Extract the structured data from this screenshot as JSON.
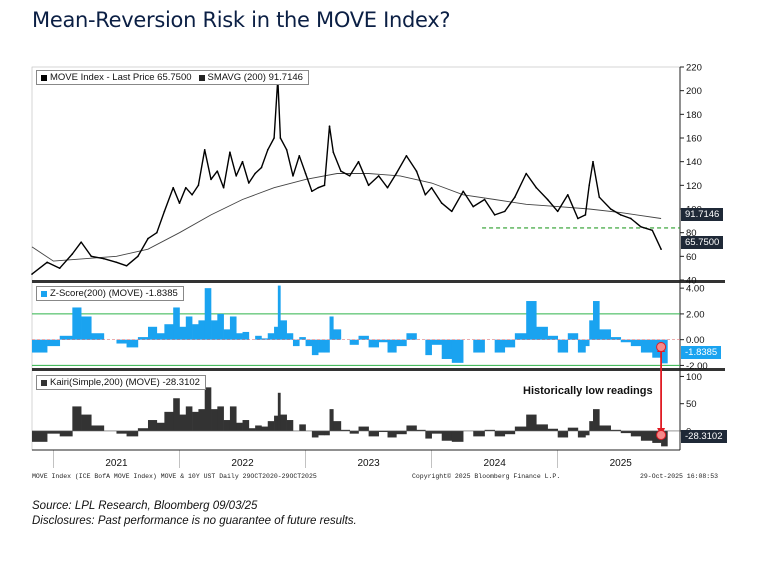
{
  "title": "Mean-Reversion Risk in the MOVE Index?",
  "source": "Source: LPL Research, Bloomberg 09/03/25",
  "disclosure": "Disclosures: Past performance is no guarantee of future results.",
  "footer_left": "MOVE Index (ICE BofA MOVE Index) MOVE & 10Y UST Daily 29OCT2020-29OCT2025",
  "footer_mid": "Copyright© 2025 Bloomberg Finance L.P.",
  "footer_right": "29-Oct-2025 16:08:53",
  "annotation": "Historically low readings",
  "colors": {
    "price": "#000000",
    "sma": "#444444",
    "zscore": "#1aa3f0",
    "kairi": "#333333",
    "green": "#2fb34a",
    "support": "#2a9d2a",
    "arrow": "#e01c24",
    "tag_dark": "#1f2937",
    "tag_blue": "#1aa3f0"
  },
  "chart_data": [
    {
      "type": "line",
      "panel": "price",
      "legend": [
        "MOVE Index - Last Price 65.7500",
        "SMAVG (200) 91.7146"
      ],
      "ylim": [
        40,
        220
      ],
      "yticks": [
        "220",
        "200",
        "180",
        "160",
        "140",
        "120",
        "100",
        "80",
        "60",
        "40"
      ],
      "last_price_label": "65.7500",
      "sma_label": "91.7146",
      "support_level": 84,
      "series": [
        {
          "name": "MOVE Index - Last Price",
          "x": [
            2020.83,
            2020.95,
            2021.05,
            2021.15,
            2021.22,
            2021.3,
            2021.4,
            2021.5,
            2021.58,
            2021.67,
            2021.75,
            2021.82,
            2021.88,
            2021.95,
            2022.0,
            2022.05,
            2022.1,
            2022.15,
            2022.2,
            2022.25,
            2022.3,
            2022.35,
            2022.4,
            2022.45,
            2022.5,
            2022.55,
            2022.6,
            2022.65,
            2022.7,
            2022.75,
            2022.78,
            2022.8,
            2022.85,
            2022.9,
            2022.95,
            2023.0,
            2023.05,
            2023.1,
            2023.15,
            2023.19,
            2023.22,
            2023.28,
            2023.35,
            2023.42,
            2023.5,
            2023.58,
            2023.65,
            2023.72,
            2023.8,
            2023.88,
            2023.95,
            2024.0,
            2024.08,
            2024.16,
            2024.25,
            2024.33,
            2024.42,
            2024.5,
            2024.58,
            2024.66,
            2024.75,
            2024.83,
            2024.92,
            2025.0,
            2025.08,
            2025.16,
            2025.22,
            2025.25,
            2025.28,
            2025.33,
            2025.42,
            2025.5,
            2025.58,
            2025.66,
            2025.75,
            2025.82
          ],
          "values": [
            45,
            55,
            50,
            62,
            72,
            60,
            58,
            55,
            52,
            60,
            75,
            80,
            98,
            118,
            105,
            118,
            112,
            120,
            150,
            125,
            132,
            118,
            148,
            128,
            140,
            122,
            130,
            135,
            150,
            160,
            210,
            160,
            150,
            128,
            145,
            130,
            115,
            118,
            120,
            170,
            148,
            132,
            128,
            140,
            120,
            128,
            118,
            130,
            145,
            132,
            112,
            118,
            105,
            98,
            115,
            102,
            108,
            95,
            98,
            110,
            130,
            118,
            108,
            98,
            112,
            92,
            95,
            120,
            140,
            110,
            100,
            95,
            92,
            85,
            82,
            66
          ]
        },
        {
          "name": "SMAVG (200)",
          "x": [
            2020.83,
            2021.0,
            2021.25,
            2021.5,
            2021.75,
            2022.0,
            2022.25,
            2022.5,
            2022.75,
            2023.0,
            2023.25,
            2023.5,
            2023.75,
            2024.0,
            2024.25,
            2024.5,
            2024.75,
            2025.0,
            2025.25,
            2025.5,
            2025.82
          ],
          "values": [
            68,
            56,
            58,
            60,
            66,
            80,
            95,
            108,
            118,
            125,
            130,
            130,
            128,
            122,
            112,
            108,
            104,
            102,
            100,
            97,
            92
          ]
        }
      ]
    },
    {
      "type": "area",
      "panel": "zscore",
      "legend": [
        "Z-Score(200) (MOVE) -1.8385"
      ],
      "ylim": [
        -2.2,
        4.4
      ],
      "yticks": [
        "4.00",
        "2.00",
        "0.00",
        "-2.00"
      ],
      "reference_lines": [
        2,
        -2
      ],
      "last_value_label": "-1.8385",
      "series": [
        {
          "name": "Z-Score(200) (MOVE)",
          "x": [
            2020.83,
            2020.95,
            2021.05,
            2021.15,
            2021.22,
            2021.3,
            2021.4,
            2021.5,
            2021.58,
            2021.67,
            2021.75,
            2021.82,
            2021.88,
            2021.95,
            2022.0,
            2022.05,
            2022.1,
            2022.15,
            2022.2,
            2022.25,
            2022.3,
            2022.35,
            2022.4,
            2022.45,
            2022.5,
            2022.55,
            2022.6,
            2022.65,
            2022.7,
            2022.75,
            2022.78,
            2022.8,
            2022.85,
            2022.9,
            2022.95,
            2023.0,
            2023.05,
            2023.1,
            2023.15,
            2023.19,
            2023.22,
            2023.28,
            2023.35,
            2023.42,
            2023.5,
            2023.58,
            2023.65,
            2023.72,
            2023.8,
            2023.88,
            2023.95,
            2024.0,
            2024.08,
            2024.16,
            2024.25,
            2024.33,
            2024.42,
            2024.5,
            2024.58,
            2024.66,
            2024.75,
            2024.83,
            2024.92,
            2025.0,
            2025.08,
            2025.16,
            2025.22,
            2025.25,
            2025.28,
            2025.33,
            2025.42,
            2025.5,
            2025.58,
            2025.66,
            2025.75,
            2025.82
          ],
          "values": [
            -1.0,
            -0.5,
            0.3,
            2.5,
            1.8,
            0.5,
            0.0,
            -0.3,
            -0.6,
            0.2,
            1.0,
            0.5,
            1.2,
            2.5,
            1.0,
            1.8,
            1.2,
            1.5,
            4.0,
            1.5,
            2.0,
            0.8,
            1.8,
            0.5,
            0.6,
            0.0,
            0.3,
            0.1,
            0.5,
            1.0,
            4.2,
            1.5,
            0.5,
            -0.5,
            0.2,
            -0.5,
            -1.2,
            -1.0,
            -1.0,
            1.8,
            0.8,
            0.0,
            -0.4,
            0.3,
            -0.6,
            -0.2,
            -1.0,
            -0.5,
            0.5,
            0.0,
            -1.2,
            -0.4,
            -1.5,
            -1.8,
            0.0,
            -1.0,
            0.0,
            -1.0,
            -0.6,
            0.5,
            3.0,
            1.0,
            0.3,
            -1.0,
            0.5,
            -1.0,
            -0.5,
            1.5,
            3.0,
            0.8,
            0.2,
            -0.2,
            -0.5,
            -1.0,
            -1.4,
            -1.84
          ]
        }
      ]
    },
    {
      "type": "area",
      "panel": "kairi",
      "legend": [
        "Kairi(Simple,200) (MOVE) -28.3102"
      ],
      "ylim": [
        -35,
        110
      ],
      "yticks": [
        "100",
        "50",
        "0"
      ],
      "last_value_label": "-28.3102",
      "series": [
        {
          "name": "Kairi(Simple,200) (MOVE)",
          "x": [
            2020.83,
            2020.95,
            2021.05,
            2021.15,
            2021.22,
            2021.3,
            2021.4,
            2021.5,
            2021.58,
            2021.67,
            2021.75,
            2021.82,
            2021.88,
            2021.95,
            2022.0,
            2022.05,
            2022.1,
            2022.15,
            2022.2,
            2022.25,
            2022.3,
            2022.35,
            2022.4,
            2022.45,
            2022.5,
            2022.55,
            2022.6,
            2022.65,
            2022.7,
            2022.75,
            2022.78,
            2022.8,
            2022.85,
            2022.9,
            2022.95,
            2023.0,
            2023.05,
            2023.1,
            2023.15,
            2023.19,
            2023.22,
            2023.28,
            2023.35,
            2023.42,
            2023.5,
            2023.58,
            2023.65,
            2023.72,
            2023.8,
            2023.88,
            2023.95,
            2024.0,
            2024.08,
            2024.16,
            2024.25,
            2024.33,
            2024.42,
            2024.5,
            2024.58,
            2024.66,
            2024.75,
            2024.83,
            2024.92,
            2025.0,
            2025.08,
            2025.16,
            2025.22,
            2025.25,
            2025.28,
            2025.33,
            2025.42,
            2025.5,
            2025.58,
            2025.66,
            2025.75,
            2025.82
          ],
          "values": [
            -20,
            -5,
            -10,
            45,
            30,
            10,
            0,
            -5,
            -10,
            5,
            20,
            15,
            35,
            60,
            30,
            45,
            35,
            40,
            80,
            40,
            45,
            20,
            45,
            15,
            20,
            5,
            10,
            8,
            18,
            28,
            70,
            30,
            20,
            0,
            12,
            0,
            -12,
            -8,
            -8,
            40,
            18,
            2,
            -5,
            8,
            -10,
            -2,
            -12,
            -6,
            10,
            2,
            -14,
            -5,
            -18,
            -20,
            0,
            -10,
            2,
            -10,
            -6,
            8,
            30,
            12,
            4,
            -12,
            6,
            -12,
            -8,
            18,
            40,
            10,
            2,
            -4,
            -10,
            -18,
            -22,
            -28.3
          ]
        }
      ]
    }
  ],
  "xaxis": {
    "labels": [
      "2021",
      "2022",
      "2023",
      "2024",
      "2025"
    ],
    "positions": [
      2021.5,
      2022.5,
      2023.5,
      2024.5,
      2025.5
    ],
    "dividers": [
      2021.0,
      2022.0,
      2023.0,
      2024.0,
      2025.0
    ],
    "xlim": [
      2020.83,
      2025.97
    ]
  }
}
